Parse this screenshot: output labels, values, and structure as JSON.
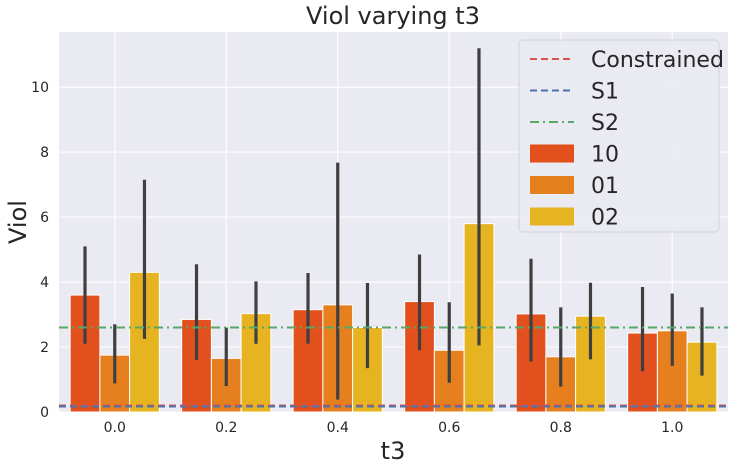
{
  "chart_data": {
    "type": "bar",
    "title": "Viol varying t3",
    "xlabel": "t3",
    "ylabel": "Viol",
    "categories": [
      "0.0",
      "0.2",
      "0.4",
      "0.6",
      "0.8",
      "1.0"
    ],
    "ylim": [
      0,
      11.7
    ],
    "yticks": [
      0,
      2,
      4,
      6,
      8,
      10
    ],
    "grid": true,
    "legend_position": "top-right",
    "series": [
      {
        "name": "10",
        "color": "#e2501e",
        "values": [
          3.6,
          2.85,
          3.15,
          3.4,
          3.02,
          2.43
        ],
        "err_low": [
          2.1,
          1.6,
          2.1,
          1.9,
          1.55,
          1.25
        ],
        "err_high": [
          5.1,
          4.55,
          4.28,
          4.85,
          4.72,
          3.85
        ]
      },
      {
        "name": "01",
        "color": "#e6801f",
        "values": [
          1.75,
          1.65,
          3.3,
          1.9,
          1.7,
          2.5
        ],
        "err_low": [
          0.88,
          0.8,
          0.38,
          0.9,
          0.78,
          1.42
        ],
        "err_high": [
          2.7,
          2.6,
          7.68,
          3.38,
          3.22,
          3.65
        ]
      },
      {
        "name": "02",
        "color": "#e6b421",
        "values": [
          4.3,
          3.03,
          2.6,
          5.8,
          2.95,
          2.15
        ],
        "err_low": [
          2.25,
          2.1,
          1.35,
          2.05,
          1.62,
          1.12
        ],
        "err_high": [
          7.15,
          4.02,
          3.97,
          11.2,
          3.98,
          3.22
        ]
      }
    ],
    "reference_lines": [
      {
        "name": "Constrained",
        "value": 0.2,
        "color": "#d9544f",
        "style": "dashed"
      },
      {
        "name": "S1",
        "value": 0.17,
        "color": "#4c72b0",
        "style": "dashed"
      },
      {
        "name": "S2",
        "value": 2.6,
        "color": "#55a868",
        "style": "dashdot"
      }
    ]
  }
}
